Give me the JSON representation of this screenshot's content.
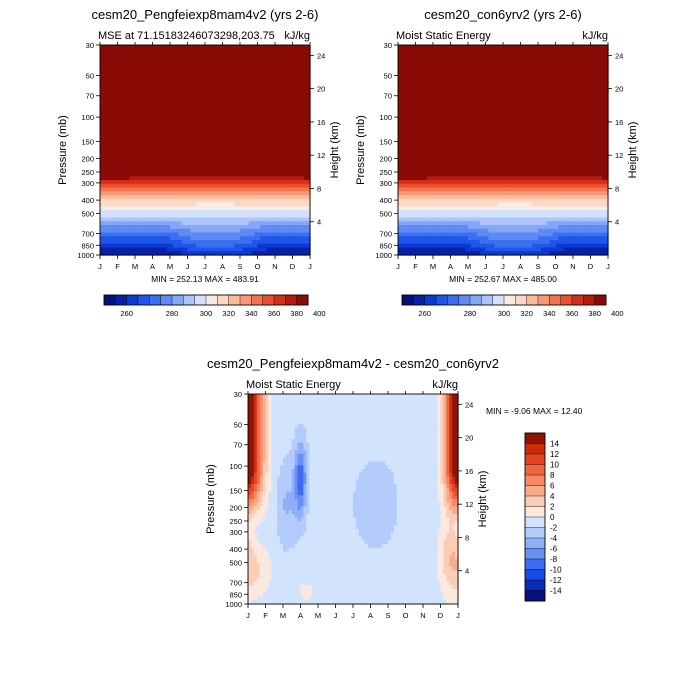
{
  "colors": {
    "mse_scale": [
      "#0a0f7a",
      "#0820a8",
      "#0a3ad0",
      "#1f55ea",
      "#3c6ff0",
      "#5f8af5",
      "#86a7f8",
      "#adc4fa",
      "#d3e1fc",
      "#f5ece4",
      "#fcd7c3",
      "#fab99b",
      "#f79877",
      "#f3744f",
      "#ea4f2e",
      "#d42f1b",
      "#b51b0f",
      "#8a0a05"
    ],
    "diff_scale": [
      "#06127a",
      "#0c2bb5",
      "#1a49e6",
      "#3d6cf0",
      "#6790f4",
      "#8fb0f8",
      "#b4ccfb",
      "#d2e3fd",
      "#fbe9df",
      "#fbcdb6",
      "#f9ac8c",
      "#f68a66",
      "#f0663f",
      "#e64420",
      "#c92d0c",
      "#901303"
    ]
  },
  "shared_axes": {
    "pressure_label": "Pressure (mb)",
    "height_label": "Height (km)",
    "pressure_ticks": [
      30,
      50,
      70,
      100,
      150,
      200,
      250,
      300,
      400,
      500,
      700,
      850,
      1000
    ],
    "height_ticks": [
      4,
      8,
      12,
      16,
      20,
      24
    ],
    "months": [
      "J",
      "F",
      "M",
      "A",
      "M",
      "J",
      "J",
      "A",
      "S",
      "O",
      "N",
      "D",
      "J"
    ],
    "units": "kJ/kg"
  },
  "chart_data": [
    {
      "type": "heatmap",
      "title": "cesm20_Pengfeiexp8mam4v2 (yrs 2-6)",
      "subtitle_left": "MSE at 71.15183246073298,203.75",
      "subtitle_right": "kJ/kg",
      "xlabel": "",
      "ylabel": "Pressure (mb)",
      "ylabel_right": "Height (km)",
      "stats": "MIN = 252.13 MAX = 483.91",
      "min": 252.13,
      "max": 483.91,
      "colorbar_ticks": [
        260,
        280,
        300,
        320,
        340,
        360,
        380,
        400
      ],
      "contour_levels": [
        255,
        260,
        265,
        270,
        275,
        280,
        285,
        290,
        300,
        310,
        320,
        330,
        340,
        350,
        360,
        370,
        380,
        390,
        400,
        405
      ],
      "ylim": [
        1000,
        30
      ]
    },
    {
      "type": "heatmap",
      "title": "cesm20_con6yrv2 (yrs 2-6)",
      "subtitle_left": "Moist Static Energy",
      "subtitle_right": "kJ/kg",
      "xlabel": "",
      "ylabel": "Pressure (mb)",
      "ylabel_right": "Height (km)",
      "stats": "MIN = 252.67 MAX = 485.00",
      "min": 252.67,
      "max": 485.0,
      "colorbar_ticks": [
        260,
        280,
        300,
        320,
        340,
        360,
        380,
        400
      ],
      "ylim": [
        1000,
        30
      ]
    },
    {
      "type": "heatmap",
      "title": "cesm20_Pengfeiexp8mam4v2 - cesm20_con6yrv2",
      "subtitle_left": "Moist Static Energy",
      "subtitle_right": "kJ/kg",
      "xlabel": "",
      "ylabel": "Pressure (mb)",
      "ylabel_right": "Height (km)",
      "stats": "MIN =  -9.06 MAX =  12.40",
      "min": -9.06,
      "max": 12.4,
      "colorbar_levels": [
        -14,
        -12,
        -10,
        -8,
        -6,
        -4,
        -2,
        0,
        2,
        4,
        6,
        8,
        10,
        12,
        14
      ],
      "ylim": [
        1000,
        30
      ]
    }
  ]
}
